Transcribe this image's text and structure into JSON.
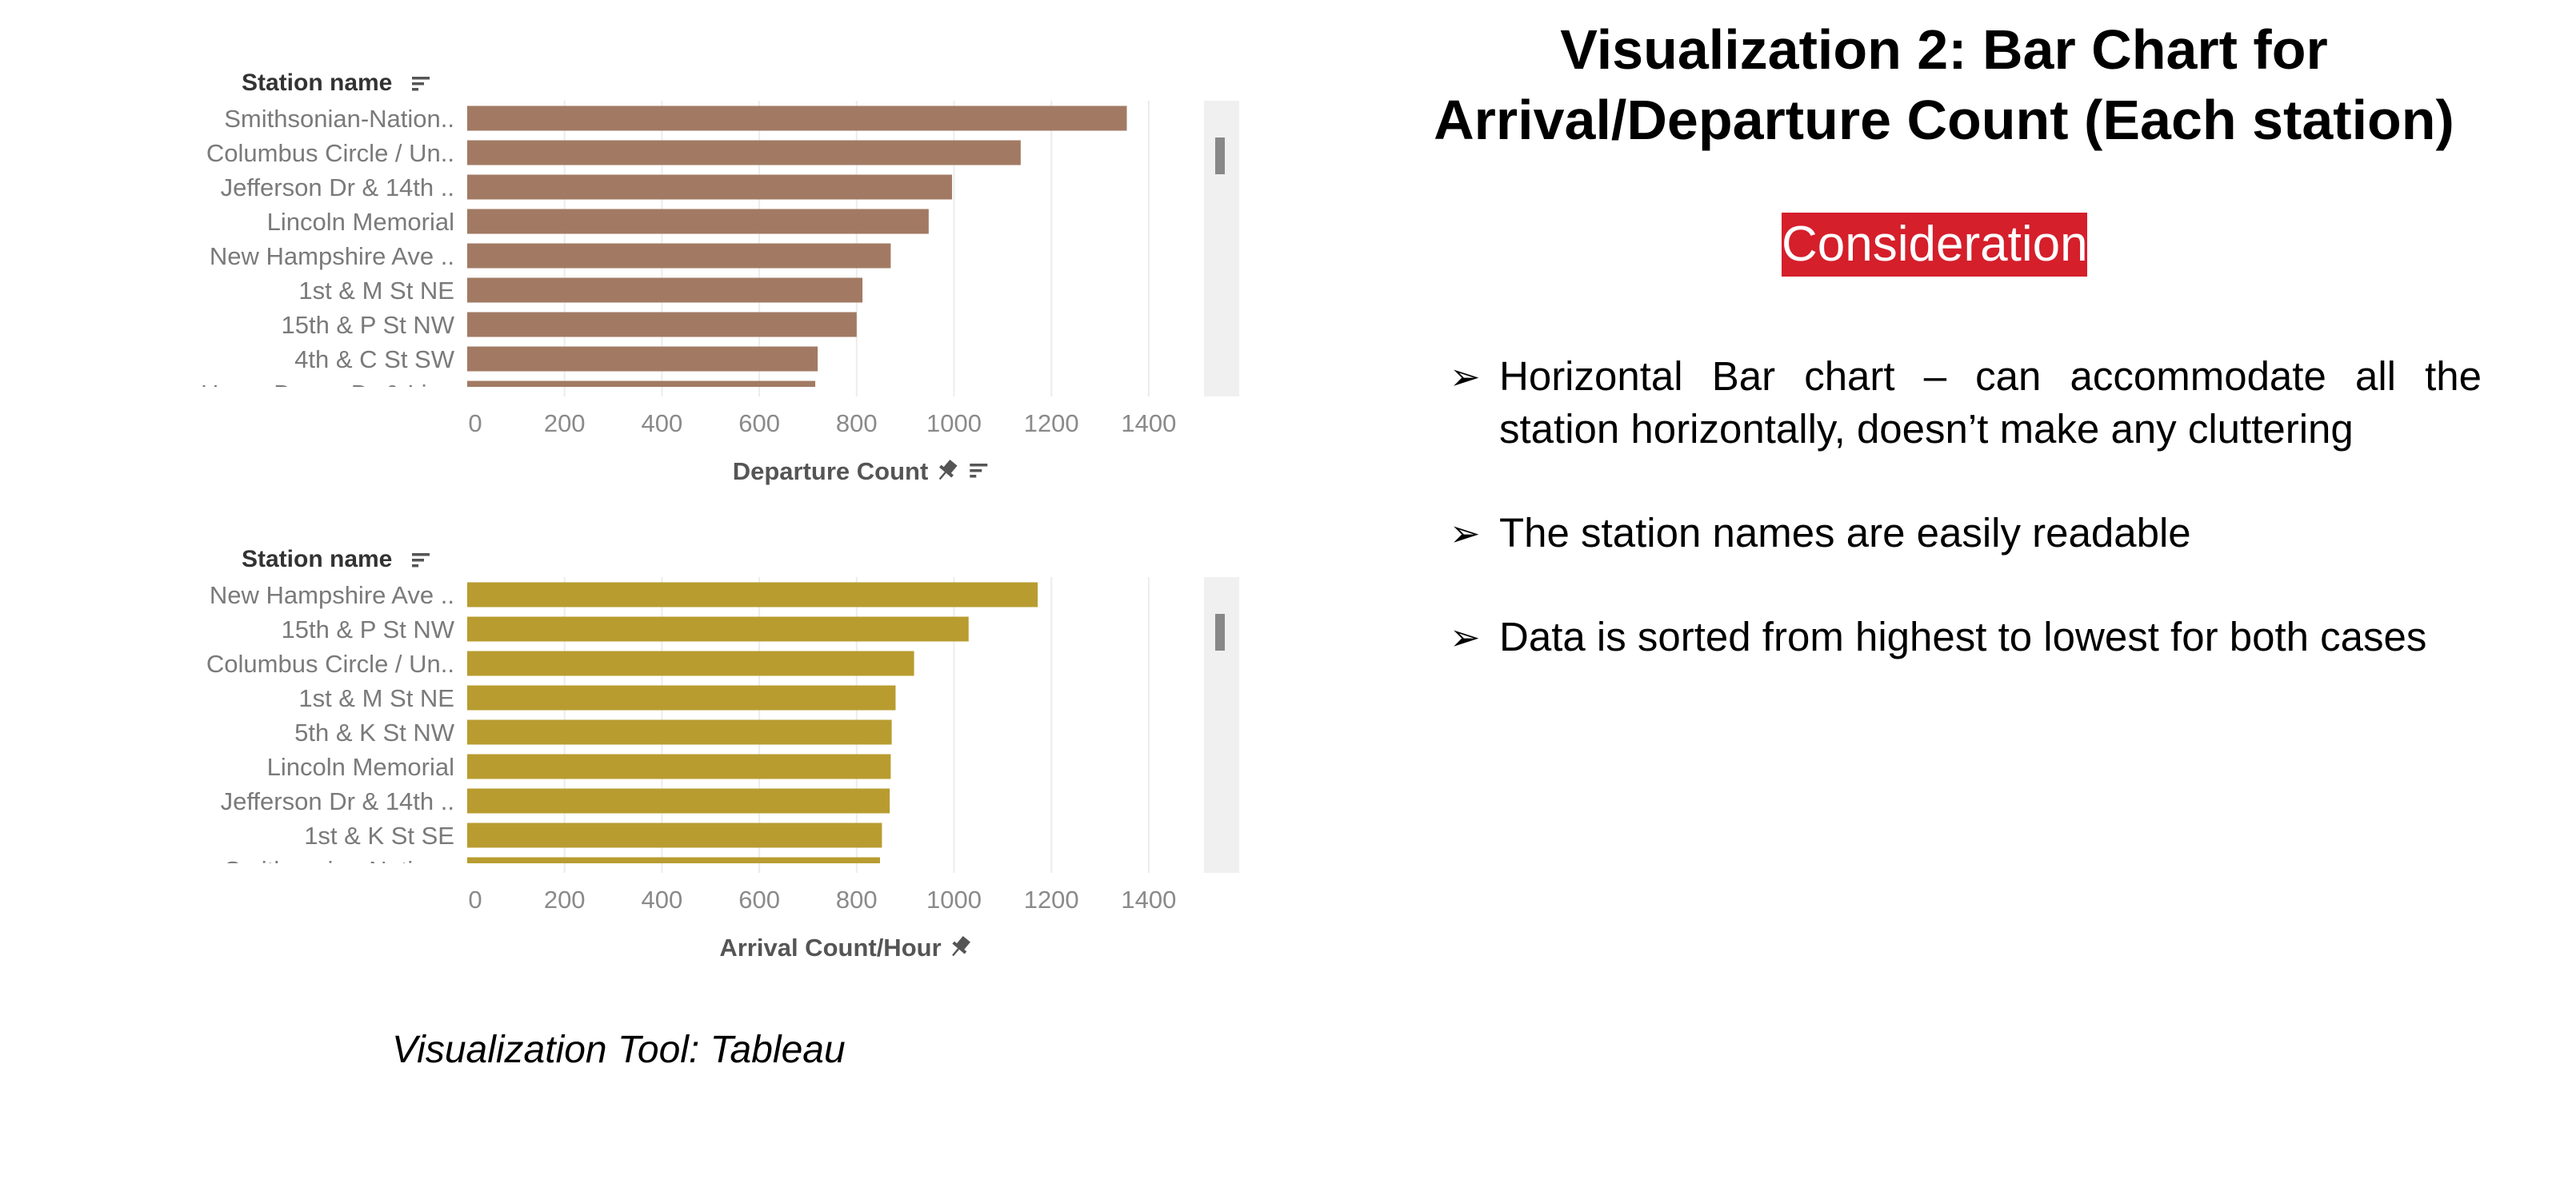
{
  "chart_data": [
    {
      "type": "bar",
      "orientation": "horizontal",
      "row_header": "Station name",
      "categories": [
        "Smithsonian-Nation..",
        "Columbus Circle / Un..",
        "Jefferson Dr & 14th ..",
        "Lincoln Memorial",
        "New Hampshire Ave ..",
        "1st & M St NE",
        "15th & P St NW",
        "4th & C St SW",
        "Henry Bacon Dr & Lin.."
      ],
      "values": [
        1355,
        1137,
        996,
        948,
        870,
        812,
        800,
        720,
        715
      ],
      "xlabel": "Departure Count",
      "xticks": [
        "0",
        "200",
        "400",
        "600",
        "800",
        "1000",
        "1200",
        "1400"
      ],
      "xlim": [
        0,
        1480
      ],
      "color": "#a27a63",
      "grid": "vertical"
    },
    {
      "type": "bar",
      "orientation": "horizontal",
      "row_header": "Station name",
      "categories": [
        "New Hampshire Ave ..",
        "15th & P St NW",
        "Columbus Circle / Un..",
        "1st & M St NE",
        "5th & K St NW",
        "Lincoln Memorial",
        "Jefferson Dr & 14th ..",
        "1st & K St SE",
        "Smithsonian-Nation.."
      ],
      "values": [
        1172,
        1030,
        918,
        880,
        872,
        870,
        868,
        852,
        848
      ],
      "xlabel": "Arrival Count/Hour",
      "xticks": [
        "0",
        "200",
        "400",
        "600",
        "800",
        "1000",
        "1200",
        "1400"
      ],
      "xlim": [
        0,
        1480
      ],
      "color": "#b89c30",
      "grid": "vertical"
    }
  ],
  "slide": {
    "title_line1": "Visualization 2: Bar Chart for",
    "title_line2": "Arrival/Departure Count (Each station)",
    "consideration": "Consideration",
    "bullet_marker": "➢",
    "bullets": [
      "Horizontal Bar chart – can accommodate all the station horizontally, doesn’t make any cluttering",
      "The station names are easily readable",
      "Data is sorted from highest to lowest for both cases"
    ],
    "tool_caption": "Visualization Tool: Tableau"
  }
}
